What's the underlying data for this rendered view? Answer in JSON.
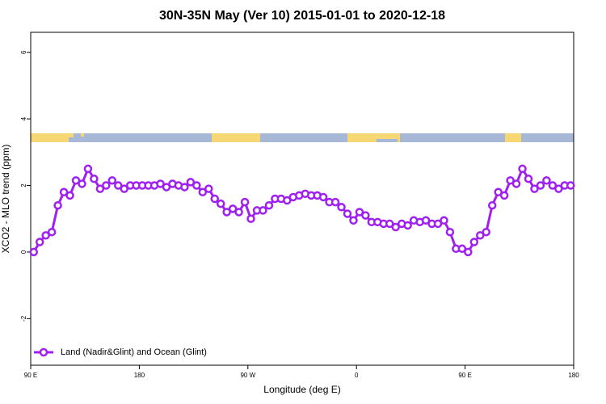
{
  "chart_data": {
    "type": "line",
    "title": "30N-35N May (Ver 10)   2015-01-01 to 2020-12-18",
    "x_label": "Longitude (deg E)",
    "y_label": "XCO2 - MLO trend (ppm)",
    "xlim": [
      90,
      540
    ],
    "ylim": [
      -3.4,
      6.6
    ],
    "xticks": [
      {
        "value": 90,
        "label": "90 E"
      },
      180,
      {
        "value": 270,
        "label": "90 W"
      },
      {
        "value": 360,
        "label": "0"
      },
      {
        "value": 450,
        "label": "90 E"
      },
      {
        "value": 540,
        "label": "180"
      }
    ],
    "yticks": [
      -2,
      0,
      2,
      4,
      6
    ],
    "legend": "bottomleft",
    "x": [
      92.5,
      97.5,
      102.5,
      107.5,
      112.5,
      117.5,
      122.5,
      127.5,
      132.5,
      137.5,
      142.5,
      147.5,
      152.5,
      157.5,
      162.5,
      167.5,
      172.5,
      177.5,
      182.5,
      187.5,
      192.5,
      197.5,
      202.5,
      207.5,
      212.5,
      217.5,
      222.5,
      227.5,
      232.5,
      237.5,
      242.5,
      247.5,
      252.5,
      257.5,
      262.5,
      267.5,
      272.5,
      277.5,
      282.5,
      287.5,
      292.5,
      297.5,
      302.5,
      307.5,
      312.5,
      317.5,
      322.5,
      327.5,
      332.5,
      337.5,
      342.5,
      347.5,
      352.5,
      357.5,
      362.5,
      367.5,
      372.5,
      377.5,
      382.5,
      387.5,
      392.5,
      397.5,
      402.5,
      407.5,
      412.5,
      417.5,
      422.5,
      427.5,
      432.5,
      437.5,
      442.5,
      447.5,
      452.5,
      457.5,
      462.5,
      467.5,
      472.5,
      477.5,
      482.5,
      487.5,
      492.5,
      497.5,
      502.5,
      507.5,
      512.5,
      517.5,
      522.5,
      527.5,
      532.5,
      537.5
    ],
    "series": [
      {
        "name": "Land (Nadir&Glint) and Ocean (Glint)",
        "color": "#a020f0",
        "values": [
          0.0,
          0.3,
          0.5,
          0.6,
          1.4,
          1.8,
          1.7,
          2.15,
          2.05,
          2.5,
          2.2,
          1.9,
          2.0,
          2.15,
          2.0,
          1.9,
          2.0,
          2.0,
          2.0,
          2.0,
          2.0,
          2.05,
          1.95,
          2.05,
          2.0,
          1.95,
          2.1,
          2.0,
          1.8,
          1.9,
          1.6,
          1.45,
          1.2,
          1.3,
          1.2,
          1.5,
          1.0,
          1.25,
          1.25,
          1.4,
          1.6,
          1.6,
          1.55,
          1.65,
          1.7,
          1.75,
          1.7,
          1.7,
          1.65,
          1.5,
          1.5,
          1.35,
          1.15,
          0.95,
          1.2,
          1.1,
          0.9,
          0.9,
          0.85,
          0.85,
          0.75,
          0.85,
          0.8,
          0.95,
          0.9,
          0.95,
          0.85,
          0.85,
          0.95,
          0.6,
          0.1,
          0.1,
          0.0,
          0.3,
          0.5,
          0.6,
          1.4,
          1.8,
          1.7,
          2.15,
          2.05,
          2.5,
          2.2,
          1.9,
          2.0,
          2.15,
          2.0,
          1.9,
          2.0,
          2.0
        ]
      }
    ]
  }
}
